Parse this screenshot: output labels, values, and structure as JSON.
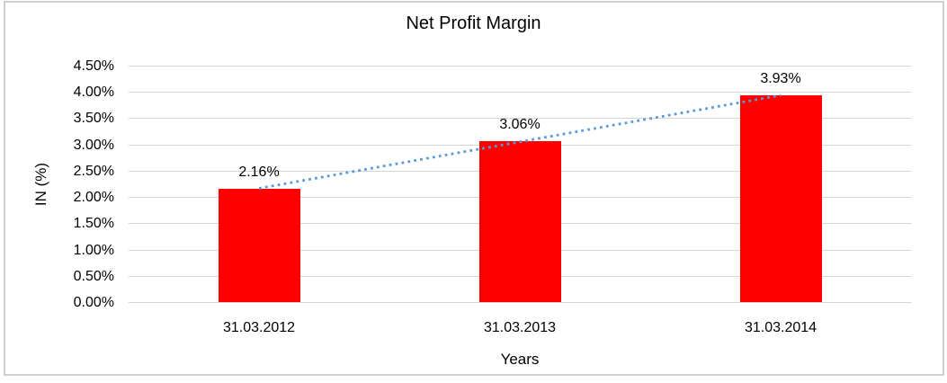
{
  "chart_data": {
    "type": "bar",
    "title": "Net Profit Margin",
    "categories": [
      "31.03.2012",
      "31.03.2013",
      "31.03.2014"
    ],
    "values": [
      2.16,
      3.06,
      3.93
    ],
    "data_labels": [
      "2.16%",
      "3.06%",
      "3.93%"
    ],
    "xlabel": "Years",
    "ylabel": "IN (%)",
    "ylim": [
      0,
      4.5
    ],
    "ytick_step": 0.5,
    "ytick_labels": [
      "0.00%",
      "0.50%",
      "1.00%",
      "1.50%",
      "2.00%",
      "2.50%",
      "3.00%",
      "3.50%",
      "4.00%",
      "4.50%"
    ],
    "grid": true,
    "legend": false,
    "trendline": {
      "type": "linear",
      "style": "dotted"
    },
    "colors": {
      "bar": "#FF0000",
      "trendline": "#5B9BD5",
      "gridline": "#D6D6D6",
      "border": "#CFCFCF",
      "text": "#000000",
      "background": "#FFFFFF"
    }
  }
}
